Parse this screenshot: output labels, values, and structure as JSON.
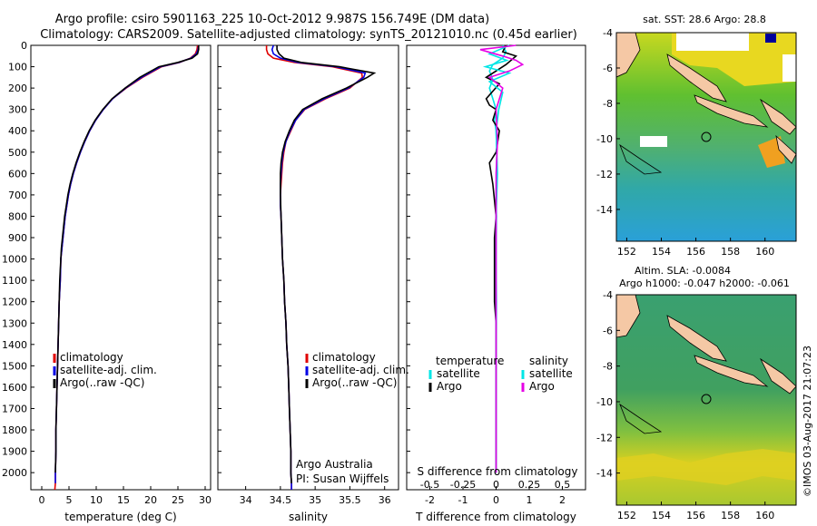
{
  "title_line1": "Argo profile: csiro 5901163_225 10-Oct-2012 9.987S 156.749E (DM data)",
  "title_line2": "Climatology: CARS2009. Satellite-adjusted climatology: synTS_20121010.nc (0.45d earlier)",
  "credit_lines": [
    "Argo Australia",
    "PI: Susan Wijffels"
  ],
  "footer_vertical": "©IMOS 03-Aug-2017 21:07:23",
  "sst_title": "sat. SST: 28.6 Argo: 28.8",
  "sla_title_line1": "Altim. SLA: -0.0084",
  "sla_title_line2": "Argo h1000: -0.047 h2000: -0.061",
  "map_lon_ticks": [
    "152",
    "154",
    "156",
    "158",
    "160"
  ],
  "map_lat_ticks": [
    "-4",
    "-6",
    "-8",
    "-10",
    "-12",
    "-14"
  ],
  "colors": {
    "climatology": "#e00000",
    "satellite": "#0000e6",
    "argo": "#000000",
    "argo_salinity": "#e600e6",
    "satellite_salinity": "#00e6e6",
    "land": "#f5c8a5"
  },
  "chart_data": [
    {
      "type": "line",
      "xlabel": "temperature (deg C)",
      "ylabel": "",
      "xlim": [
        -2,
        31
      ],
      "ylim": [
        2080,
        0
      ],
      "x_ticks": [
        "0",
        "5",
        "10",
        "15",
        "20",
        "25",
        "30"
      ],
      "y_ticks": [
        "0",
        "100",
        "200",
        "300",
        "400",
        "500",
        "600",
        "700",
        "800",
        "900",
        "1000",
        "1100",
        "1200",
        "1300",
        "1400",
        "1500",
        "1600",
        "1700",
        "1800",
        "1900",
        "2000"
      ],
      "legend": [
        "climatology",
        "satellite-adj. clim.",
        "Argo(..raw -QC)"
      ],
      "series": [
        {
          "name": "climatology",
          "x": [
            28.6,
            28.5,
            28.2,
            27.3,
            25.3,
            22,
            18.5,
            15.5,
            13,
            11.3,
            9.9,
            8.8,
            7.9,
            7.1,
            6.4,
            5.8,
            5.3,
            4.9,
            4.6,
            4.3,
            4.1,
            3.9,
            3.7,
            3.5,
            3.4,
            3.2,
            3.1,
            3,
            2.9,
            2.8,
            2.7,
            2.6,
            2.6,
            2.5,
            2.5,
            2.4
          ],
          "depth": [
            0,
            20,
            40,
            60,
            80,
            100,
            150,
            200,
            250,
            300,
            350,
            400,
            450,
            500,
            550,
            600,
            650,
            700,
            750,
            800,
            850,
            900,
            950,
            1000,
            1100,
            1200,
            1300,
            1400,
            1500,
            1600,
            1700,
            1800,
            1900,
            2000,
            2050,
            2080
          ]
        },
        {
          "name": "satellite-adj. clim.",
          "x": [
            28.8,
            28.7,
            28.4,
            27.4,
            25.2,
            21.8,
            18.3,
            15.4,
            13,
            11.3,
            9.9,
            8.8,
            7.9,
            7.1,
            6.4,
            5.8,
            5.3,
            4.9,
            4.6,
            4.3,
            4.1,
            3.9,
            3.7,
            3.5,
            3.4,
            3.2,
            3.1,
            3,
            2.9,
            2.8,
            2.7,
            2.6,
            2.6,
            2.5,
            2.5
          ],
          "depth": [
            0,
            20,
            40,
            60,
            80,
            100,
            150,
            200,
            250,
            300,
            350,
            400,
            450,
            500,
            550,
            600,
            650,
            700,
            750,
            800,
            850,
            900,
            950,
            1000,
            1100,
            1200,
            1300,
            1400,
            1500,
            1600,
            1700,
            1800,
            1900,
            2000,
            2050
          ]
        },
        {
          "name": "Argo(..raw -QC)",
          "x": [
            28.8,
            28.8,
            28.6,
            27.6,
            25,
            21.5,
            18,
            15.3,
            12.9,
            11.2,
            9.8,
            8.7,
            7.8,
            7,
            6.3,
            5.7,
            5.2,
            4.8,
            4.5,
            4.2,
            4,
            3.8,
            3.6,
            3.5,
            3.3,
            3.2,
            3.1,
            3,
            2.9,
            2.8,
            2.7,
            2.6,
            2.6,
            2.5
          ],
          "depth": [
            0,
            20,
            40,
            60,
            80,
            100,
            150,
            200,
            250,
            300,
            350,
            400,
            450,
            500,
            550,
            600,
            650,
            700,
            750,
            800,
            850,
            900,
            950,
            1000,
            1100,
            1200,
            1300,
            1400,
            1500,
            1600,
            1700,
            1800,
            1900,
            2000
          ]
        }
      ]
    },
    {
      "type": "line",
      "xlabel": "salinity",
      "xlim": [
        33.6,
        36.2
      ],
      "ylim": [
        2080,
        0
      ],
      "x_ticks": [
        "34",
        "34.5",
        "35",
        "35.5",
        "36"
      ],
      "legend": [
        "climatology",
        "satellite-adj. clim.",
        "Argo(..raw -QC)"
      ],
      "series": [
        {
          "name": "climatology",
          "x": [
            34.3,
            34.3,
            34.32,
            34.4,
            34.7,
            35.25,
            35.67,
            35.68,
            35.5,
            35.15,
            34.85,
            34.72,
            34.65,
            34.58,
            34.55,
            34.53,
            34.52,
            34.51,
            34.5,
            34.5,
            34.51,
            34.52,
            34.53,
            34.55,
            34.56,
            34.58,
            34.59,
            34.61,
            34.62,
            34.63,
            34.64,
            34.65,
            34.65,
            34.66,
            34.66,
            34.66
          ],
          "depth": [
            0,
            20,
            40,
            60,
            80,
            100,
            130,
            150,
            200,
            250,
            300,
            350,
            400,
            450,
            500,
            550,
            600,
            650,
            700,
            750,
            800,
            900,
            1000,
            1100,
            1200,
            1300,
            1400,
            1500,
            1600,
            1700,
            1800,
            1900,
            2000,
            2050,
            2080,
            2080
          ]
        },
        {
          "name": "satellite-adj. clim.",
          "x": [
            34.4,
            34.38,
            34.4,
            34.5,
            34.75,
            35.3,
            35.72,
            35.7,
            35.48,
            35.13,
            34.84,
            34.72,
            34.64,
            34.58,
            34.54,
            34.52,
            34.51,
            34.5,
            34.5,
            34.51,
            34.52,
            34.53,
            34.55,
            34.56,
            34.58,
            34.59,
            34.61,
            34.62,
            34.63,
            34.64,
            34.65,
            34.65,
            34.66,
            34.66
          ],
          "depth": [
            0,
            20,
            40,
            60,
            80,
            100,
            130,
            150,
            200,
            250,
            300,
            350,
            400,
            450,
            500,
            550,
            600,
            650,
            750,
            800,
            900,
            1000,
            1100,
            1200,
            1300,
            1400,
            1500,
            1600,
            1700,
            1800,
            1900,
            2000,
            2050,
            2080
          ]
        },
        {
          "name": "Argo(..raw -QC)",
          "x": [
            34.45,
            34.45,
            34.48,
            34.55,
            34.8,
            35.35,
            35.85,
            35.75,
            35.45,
            35.1,
            34.82,
            34.7,
            34.63,
            34.57,
            34.53,
            34.51,
            34.5,
            34.5,
            34.51,
            34.52,
            34.53,
            34.55,
            34.56,
            34.58,
            34.59,
            34.61,
            34.62,
            34.63,
            34.64,
            34.65,
            34.65,
            34.66
          ],
          "depth": [
            0,
            20,
            40,
            60,
            80,
            100,
            130,
            150,
            200,
            250,
            300,
            350,
            400,
            450,
            500,
            550,
            600,
            700,
            800,
            900,
            1000,
            1100,
            1200,
            1300,
            1400,
            1500,
            1600,
            1700,
            1800,
            1900,
            2000,
            2050
          ]
        }
      ]
    },
    {
      "type": "line",
      "xlabel": "T difference from climatology",
      "top_label": "S difference from climatology",
      "xlim": [
        -2.7,
        2.7
      ],
      "ylim": [
        2080,
        0
      ],
      "x_ticks": [
        "-2",
        "-1",
        "0",
        "1",
        "2"
      ],
      "s_ticks": [
        "-0.5",
        "-0.25",
        "0",
        "0.25",
        "0.5"
      ],
      "legend_titles": [
        "temperature",
        "salinity"
      ],
      "legend": [
        "satellite",
        "Argo",
        "satellite",
        "Argo"
      ],
      "series": [
        {
          "name": "T satellite",
          "x": [
            0.2,
            0.3,
            0.2,
            -0.1,
            -0.2,
            -0.1,
            -0.2,
            -0.1,
            0,
            -0.05,
            0,
            0.02,
            0.01,
            0,
            0.01,
            0,
            0.01,
            0,
            0,
            0
          ],
          "depth": [
            0,
            30,
            60,
            90,
            120,
            160,
            200,
            250,
            300,
            350,
            400,
            500,
            600,
            700,
            800,
            1000,
            1200,
            1500,
            1800,
            2000
          ]
        },
        {
          "name": "T Argo",
          "x": [
            0.3,
            0.2,
            0.6,
            0.3,
            -0.3,
            0.1,
            -0.3,
            -0.2,
            0,
            -0.1,
            0.1,
            0,
            -0.2,
            -0.1,
            0,
            -0.05,
            -0.05,
            -0.05,
            0,
            0,
            0,
            0
          ],
          "depth": [
            0,
            30,
            50,
            90,
            150,
            180,
            250,
            280,
            300,
            350,
            400,
            500,
            550,
            650,
            800,
            900,
            1000,
            1200,
            1300,
            1500,
            1800,
            2000
          ]
        },
        {
          "name": "S satellite",
          "x": [
            0.1,
            -0.05,
            0.08,
            -0.08,
            0.1,
            -0.05,
            0.05,
            0.02,
            0,
            0.01,
            0,
            0,
            0,
            0
          ],
          "depth": [
            0,
            40,
            70,
            100,
            130,
            170,
            220,
            300,
            400,
            600,
            800,
            1200,
            1600,
            2000
          ]
        },
        {
          "name": "S Argo",
          "x": [
            0.15,
            -0.12,
            0.05,
            0.15,
            0.2,
            0.1,
            -0.05,
            0.05,
            0,
            0.01,
            0,
            0,
            0,
            0
          ],
          "depth": [
            0,
            20,
            50,
            70,
            90,
            120,
            150,
            200,
            300,
            450,
            600,
            1000,
            1500,
            2000
          ]
        }
      ]
    }
  ]
}
